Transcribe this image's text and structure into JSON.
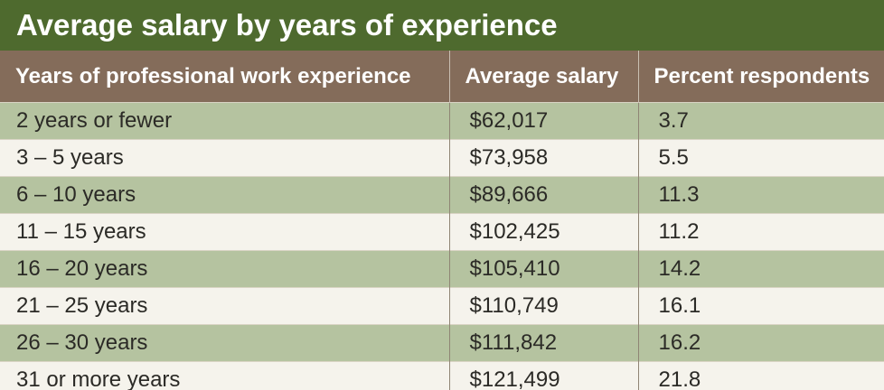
{
  "title": "Average salary by years of experience",
  "colors": {
    "title_bg": "#4e6a2e",
    "header_bg": "#846c5a",
    "row_shaded": "#b5c3a0",
    "row_plain": "#f5f3ec"
  },
  "chart_data": {
    "type": "table",
    "title": "Average salary by years of experience",
    "columns": [
      "Years of professional work experience",
      "Average salary",
      "Percent respondents"
    ],
    "rows": [
      [
        "2 years or fewer",
        "$62,017",
        "3.7"
      ],
      [
        "3 – 5 years",
        "$73,958",
        "5.5"
      ],
      [
        "6 – 10 years",
        "$89,666",
        "11.3"
      ],
      [
        "11 – 15 years",
        "$102,425",
        "11.2"
      ],
      [
        "16 – 20 years",
        "$105,410",
        "14.2"
      ],
      [
        "21 – 25 years",
        "$110,749",
        "16.1"
      ],
      [
        "26 – 30 years",
        "$111,842",
        "16.2"
      ],
      [
        "31 or more years",
        "$121,499",
        "21.8"
      ]
    ]
  }
}
